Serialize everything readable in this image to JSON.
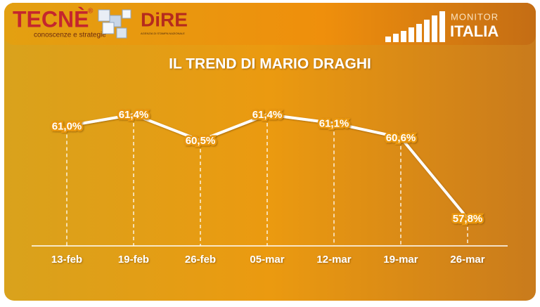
{
  "header": {
    "brand": "TECNÈ",
    "registered": "®",
    "tagline": "conoscenze e strategie",
    "agency": "DiRE",
    "agency_tagline": "AGENZIA DI STAMPA NAZIONALE",
    "monitor": "MONITOR",
    "italia": "ITALIA"
  },
  "chart_data": {
    "type": "line",
    "title": "IL TREND DI MARIO DRAGHI",
    "categories": [
      "13-feb",
      "19-feb",
      "26-feb",
      "05-mar",
      "12-mar",
      "19-mar",
      "26-mar"
    ],
    "values": [
      61.0,
      61.4,
      60.5,
      61.4,
      61.1,
      60.6,
      57.8
    ],
    "value_labels": [
      "61,0%",
      "61,4%",
      "60,5%",
      "61,4%",
      "61,1%",
      "60,6%",
      "57,8%"
    ],
    "color": "#ffffff"
  }
}
